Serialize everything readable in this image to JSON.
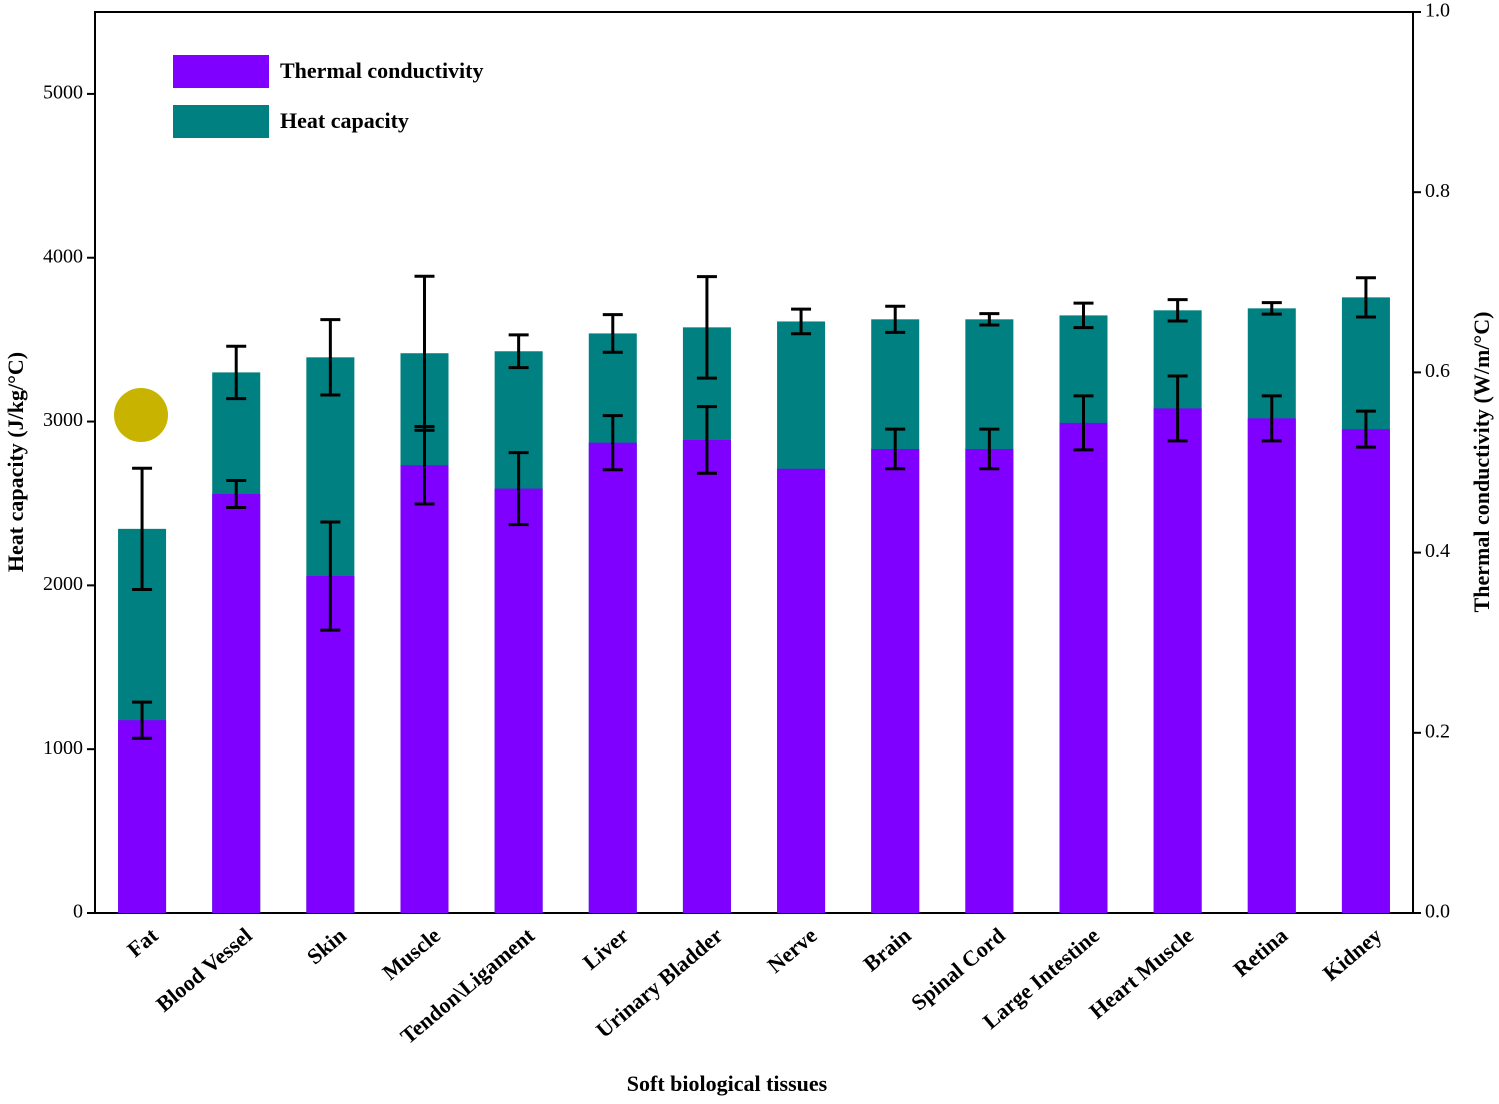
{
  "chart_data": {
    "type": "bar",
    "x_label": "Soft biological tissues",
    "y_label": "Heat capacity (J/kg/°C)",
    "y2_label": "Thermal conductivity (W/m/°C)",
    "categories": [
      "Fat",
      "Blood Vessel",
      "Skin",
      "Muscle",
      "Tendon\\Ligament",
      "Liver",
      "Urinary Bladder",
      "Nerve",
      "Brain",
      "Spinal Cord",
      "Large Intestine",
      "Heart Muscle",
      "Retina",
      "Kidney"
    ],
    "series": [
      {
        "name": "Thermal conductivity",
        "color": "#8000ff",
        "axis": "y2",
        "values": [
          0.214,
          0.465,
          0.374,
          0.497,
          0.471,
          0.522,
          0.525,
          0.493,
          0.515,
          0.515,
          0.544,
          0.56,
          0.549,
          0.537
        ],
        "errors": [
          0.02,
          0.015,
          0.06,
          0.043,
          0.04,
          0.03,
          0.037,
          null,
          0.022,
          0.022,
          0.03,
          0.036,
          0.025,
          0.02
        ]
      },
      {
        "name": "Heat capacity",
        "color": "#008080",
        "values": [
          2345,
          3300,
          3392,
          3417,
          3429,
          3538,
          3575,
          3611,
          3624,
          3624,
          3648,
          3679,
          3691,
          3758
        ],
        "errors": [
          370,
          160,
          230,
          470,
          100,
          115,
          310,
          75,
          80,
          35,
          75,
          65,
          35,
          120
        ]
      }
    ],
    "ylim": [
      0,
      5500
    ],
    "yticks": [
      0,
      1000,
      2000,
      3000,
      4000,
      5000
    ],
    "y2lim": [
      0,
      1
    ],
    "y2ticks": [
      {
        "value": 0,
        "label": "0.0"
      },
      0.2,
      0.4,
      0.6,
      0.8,
      {
        "value": 1,
        "label": "1.0"
      }
    ],
    "legend": "upper left"
  }
}
